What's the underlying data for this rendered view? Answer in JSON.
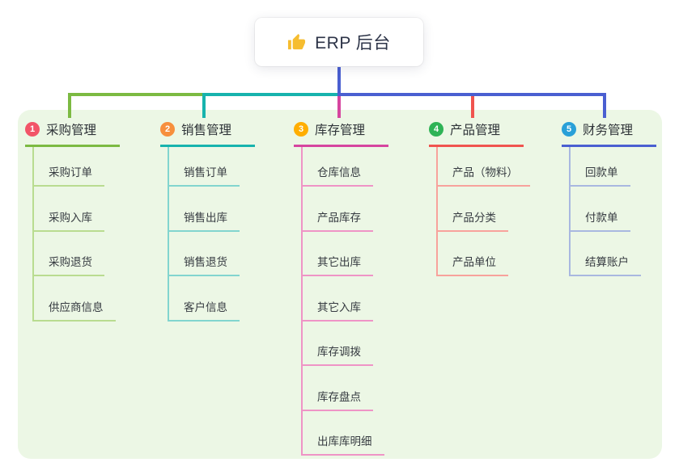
{
  "root": {
    "icon": "thumbs-up",
    "label": "ERP 后台"
  },
  "colors": {
    "canvas_bg": "#ffffff",
    "panel_bg": "#ecf7e5",
    "stem": "#4a5fd1",
    "card_text": "#2c3347",
    "thumb_icon": "#f6bd30"
  },
  "branches": [
    {
      "num": "1",
      "label": "采购管理",
      "badge_color": "#f25468",
      "line_color": "#7cba42",
      "light_color": "#b9dc90",
      "children": [
        "采购订单",
        "采购入库",
        "采购退货",
        "供应商信息"
      ]
    },
    {
      "num": "2",
      "label": "销售管理",
      "badge_color": "#f78f3d",
      "line_color": "#17b3ad",
      "light_color": "#82d5cf",
      "children": [
        "销售订单",
        "销售出库",
        "销售退货",
        "客户信息"
      ]
    },
    {
      "num": "3",
      "label": "库存管理",
      "badge_color": "#ffae00",
      "line_color": "#d6459f",
      "light_color": "#ef94c6",
      "children": [
        "仓库信息",
        "产品库存",
        "其它出库",
        "其它入库",
        "库存调拨",
        "库存盘点",
        "出库库明细"
      ]
    },
    {
      "num": "4",
      "label": "产品管理",
      "badge_color": "#2fb356",
      "line_color": "#f0544f",
      "light_color": "#f8a29c",
      "children": [
        "产品（物料）",
        "产品分类",
        "产品单位"
      ]
    },
    {
      "num": "5",
      "label": "财务管理",
      "badge_color": "#29a0d8",
      "line_color": "#4a5fd1",
      "light_color": "#a9b8e0",
      "children": [
        "回款单",
        "付款单",
        "结算账户"
      ]
    }
  ]
}
